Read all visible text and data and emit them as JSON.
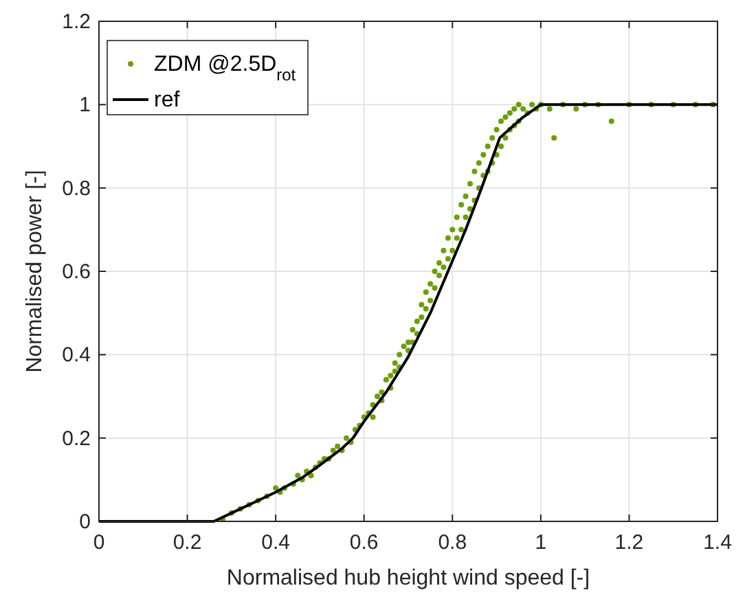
{
  "chart_data": {
    "type": "scatter",
    "xlabel": "Normalised hub height wind speed [-]",
    "ylabel": "Normalised power [-]",
    "xlim": [
      0,
      1.4
    ],
    "xticks": [
      0,
      0.2,
      0.4,
      0.6,
      0.8,
      1,
      1.2,
      1.4
    ],
    "ylim": [
      0,
      1.2
    ],
    "yticks": [
      0,
      0.2,
      0.4,
      0.6,
      0.8,
      1,
      1.2
    ],
    "grid": true,
    "legend": "top left",
    "series": [
      {
        "name": "ZDM @2.5D$_{rot}$",
        "marker": "circle",
        "color": "#6b9f0a",
        "x": [
          0.28,
          0.3,
          0.32,
          0.34,
          0.36,
          0.38,
          0.4,
          0.41,
          0.42,
          0.44,
          0.45,
          0.46,
          0.47,
          0.48,
          0.49,
          0.5,
          0.51,
          0.52,
          0.53,
          0.54,
          0.55,
          0.56,
          0.57,
          0.58,
          0.59,
          0.6,
          0.61,
          0.62,
          0.62,
          0.63,
          0.64,
          0.64,
          0.65,
          0.66,
          0.66,
          0.67,
          0.67,
          0.68,
          0.68,
          0.69,
          0.7,
          0.7,
          0.71,
          0.71,
          0.72,
          0.72,
          0.73,
          0.73,
          0.74,
          0.74,
          0.75,
          0.75,
          0.76,
          0.76,
          0.77,
          0.77,
          0.78,
          0.78,
          0.79,
          0.79,
          0.8,
          0.8,
          0.81,
          0.81,
          0.82,
          0.82,
          0.83,
          0.83,
          0.84,
          0.84,
          0.85,
          0.85,
          0.86,
          0.86,
          0.87,
          0.87,
          0.88,
          0.88,
          0.89,
          0.89,
          0.9,
          0.9,
          0.91,
          0.91,
          0.92,
          0.92,
          0.93,
          0.93,
          0.94,
          0.94,
          0.95,
          0.95,
          0.96,
          0.97,
          0.98,
          0.99,
          1.0,
          1.02,
          1.03,
          1.05,
          1.08,
          1.1,
          1.13,
          1.16,
          1.2,
          1.25,
          1.3,
          1.35,
          1.39
        ],
        "values": [
          0.005,
          0.02,
          0.03,
          0.04,
          0.05,
          0.06,
          0.08,
          0.07,
          0.08,
          0.09,
          0.11,
          0.1,
          0.12,
          0.11,
          0.13,
          0.14,
          0.15,
          0.15,
          0.17,
          0.18,
          0.17,
          0.2,
          0.19,
          0.22,
          0.23,
          0.25,
          0.26,
          0.28,
          0.25,
          0.3,
          0.31,
          0.29,
          0.34,
          0.35,
          0.32,
          0.38,
          0.36,
          0.4,
          0.37,
          0.42,
          0.43,
          0.41,
          0.46,
          0.43,
          0.48,
          0.45,
          0.52,
          0.49,
          0.55,
          0.51,
          0.57,
          0.53,
          0.6,
          0.56,
          0.62,
          0.59,
          0.65,
          0.61,
          0.68,
          0.63,
          0.7,
          0.65,
          0.73,
          0.68,
          0.76,
          0.7,
          0.78,
          0.73,
          0.81,
          0.75,
          0.84,
          0.77,
          0.86,
          0.8,
          0.88,
          0.83,
          0.9,
          0.84,
          0.92,
          0.86,
          0.94,
          0.88,
          0.96,
          0.9,
          0.97,
          0.92,
          0.98,
          0.94,
          0.99,
          0.95,
          1.0,
          0.96,
          0.99,
          0.98,
          1.0,
          0.99,
          1.0,
          0.99,
          0.92,
          1.0,
          0.99,
          1.0,
          1.0,
          0.96,
          1.0,
          1.0,
          1.0,
          1.0,
          1.0
        ]
      },
      {
        "name": "ref",
        "type": "line",
        "color": "#000000",
        "line_style": "solid",
        "x": [
          0,
          0.26,
          0.3,
          0.35,
          0.4,
          0.46,
          0.5,
          0.55,
          0.575,
          0.6,
          0.65,
          0.7,
          0.75,
          0.79,
          0.83,
          0.866,
          0.907,
          0.96,
          1.0,
          1.4
        ],
        "values": [
          0,
          0,
          0.02,
          0.045,
          0.07,
          0.105,
          0.135,
          0.175,
          0.2,
          0.24,
          0.31,
          0.395,
          0.5,
          0.6,
          0.7,
          0.8,
          0.92,
          0.97,
          1.0,
          1.0
        ]
      }
    ]
  }
}
